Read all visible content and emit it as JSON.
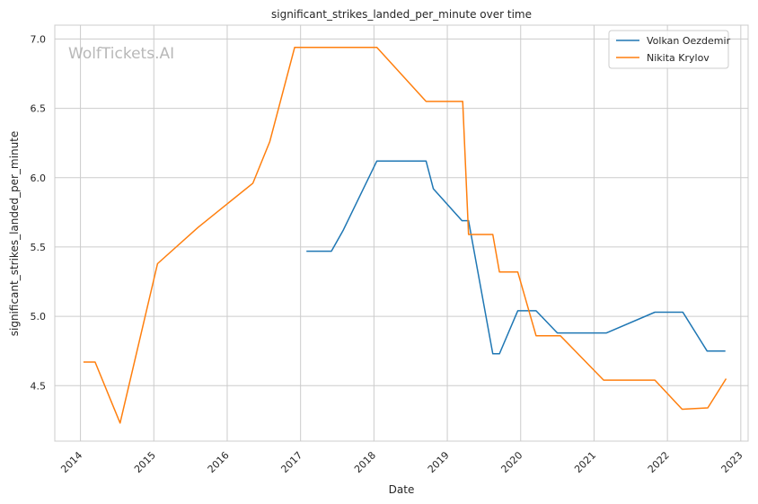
{
  "chart_data": {
    "type": "line",
    "title": "significant_strikes_landed_per_minute over time",
    "xlabel": "Date",
    "ylabel": "significant_strikes_landed_per_minute",
    "watermark": "WolfTickets.AI",
    "xlim": [
      2013.65,
      2023.1
    ],
    "ylim": [
      4.1,
      7.1
    ],
    "x_ticks": [
      2014,
      2015,
      2016,
      2017,
      2018,
      2019,
      2020,
      2021,
      2022,
      2023
    ],
    "y_ticks": [
      4.5,
      5.0,
      5.5,
      6.0,
      6.5,
      7.0
    ],
    "y_tick_labels": [
      "4.5",
      "5.0",
      "5.5",
      "6.0",
      "6.5",
      "7.0"
    ],
    "grid": true,
    "legend_position": "top-right",
    "series": [
      {
        "name": "Volkan Oezdemir",
        "color": "#1f77b4",
        "points": [
          {
            "x": 2017.08,
            "y": 5.47
          },
          {
            "x": 2017.42,
            "y": 5.47
          },
          {
            "x": 2017.58,
            "y": 5.62
          },
          {
            "x": 2018.04,
            "y": 6.12
          },
          {
            "x": 2018.71,
            "y": 6.12
          },
          {
            "x": 2018.81,
            "y": 5.92
          },
          {
            "x": 2019.2,
            "y": 5.69
          },
          {
            "x": 2019.29,
            "y": 5.69
          },
          {
            "x": 2019.62,
            "y": 4.73
          },
          {
            "x": 2019.71,
            "y": 4.73
          },
          {
            "x": 2019.96,
            "y": 5.04
          },
          {
            "x": 2020.21,
            "y": 5.04
          },
          {
            "x": 2020.5,
            "y": 4.88
          },
          {
            "x": 2021.17,
            "y": 4.88
          },
          {
            "x": 2021.83,
            "y": 5.03
          },
          {
            "x": 2022.21,
            "y": 5.03
          },
          {
            "x": 2022.54,
            "y": 4.75
          },
          {
            "x": 2022.79,
            "y": 4.75
          }
        ]
      },
      {
        "name": "Nikita Krylov",
        "color": "#ff7f0e",
        "points": [
          {
            "x": 2014.04,
            "y": 4.67
          },
          {
            "x": 2014.2,
            "y": 4.67
          },
          {
            "x": 2014.54,
            "y": 4.23
          },
          {
            "x": 2015.05,
            "y": 5.38
          },
          {
            "x": 2015.6,
            "y": 5.64
          },
          {
            "x": 2016.35,
            "y": 5.96
          },
          {
            "x": 2016.58,
            "y": 6.26
          },
          {
            "x": 2016.92,
            "y": 6.94
          },
          {
            "x": 2018.04,
            "y": 6.94
          },
          {
            "x": 2018.71,
            "y": 6.55
          },
          {
            "x": 2019.21,
            "y": 6.55
          },
          {
            "x": 2019.29,
            "y": 5.59
          },
          {
            "x": 2019.62,
            "y": 5.59
          },
          {
            "x": 2019.71,
            "y": 5.32
          },
          {
            "x": 2019.96,
            "y": 5.32
          },
          {
            "x": 2020.21,
            "y": 4.86
          },
          {
            "x": 2020.54,
            "y": 4.86
          },
          {
            "x": 2021.13,
            "y": 4.54
          },
          {
            "x": 2021.83,
            "y": 4.54
          },
          {
            "x": 2022.2,
            "y": 4.33
          },
          {
            "x": 2022.55,
            "y": 4.34
          },
          {
            "x": 2022.8,
            "y": 4.55
          }
        ]
      }
    ]
  }
}
